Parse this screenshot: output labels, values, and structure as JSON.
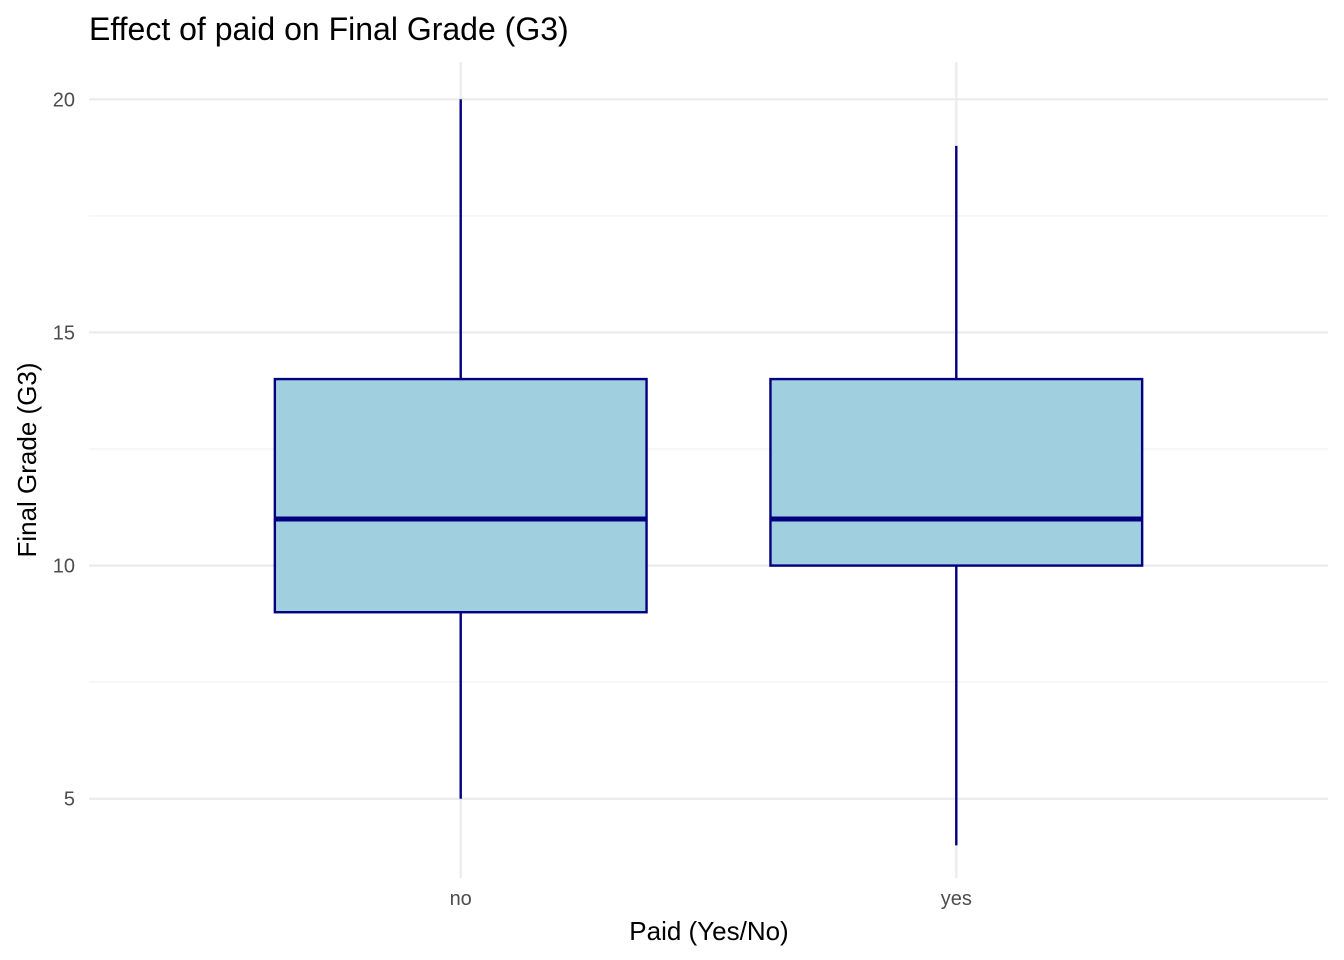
{
  "chart_data": {
    "type": "boxplot",
    "title": "Effect of paid on Final Grade (G3)",
    "xlabel": "Paid (Yes/No)",
    "ylabel": "Final Grade (G3)",
    "categories": [
      "no",
      "yes"
    ],
    "ylim": [
      3.3,
      20.8
    ],
    "yticks": [
      5,
      10,
      15,
      20
    ],
    "y_minor_ticks": [
      7.5,
      12.5,
      17.5
    ],
    "grid": true,
    "legend": "none",
    "boxes": [
      {
        "category": "no",
        "min": 5,
        "q1": 9,
        "median": 11,
        "q3": 14,
        "max": 20
      },
      {
        "category": "yes",
        "min": 4,
        "q1": 10,
        "median": 11,
        "q3": 14,
        "max": 19
      }
    ],
    "colors": {
      "fill": "#a0cfe0",
      "stroke": "#000080"
    }
  }
}
